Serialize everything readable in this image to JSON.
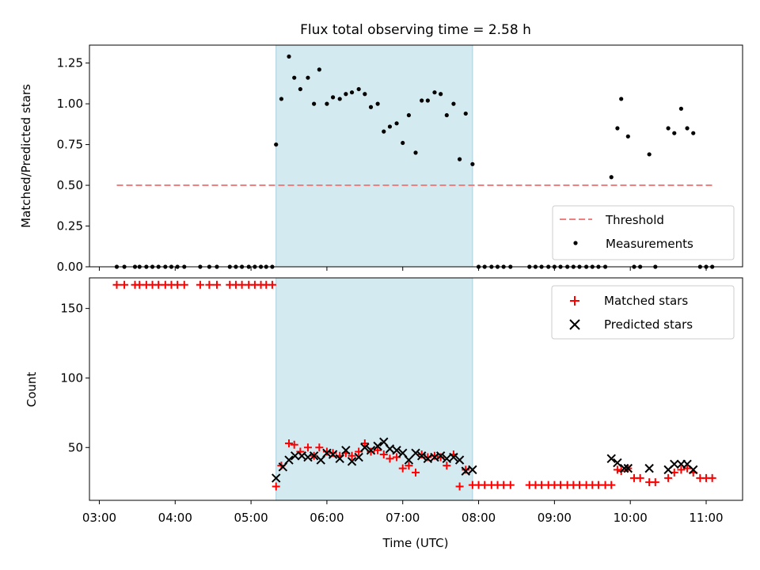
{
  "figure": {
    "title": "Flux total observing time = 2.58 h"
  },
  "chart_data": [
    {
      "type": "scatter",
      "title": "Flux total observing time = 2.58 h",
      "ylabel": "Matched/Predicted stars",
      "xlabel": "",
      "xlim": [
        2.87,
        11.48
      ],
      "ylim": [
        0,
        1.36
      ],
      "yticks": [
        0,
        0.25,
        0.5,
        0.75,
        1.0,
        1.25
      ],
      "ytick_labels": [
        "0.00",
        "0.25",
        "0.50",
        "0.75",
        "1.00",
        "1.25"
      ],
      "shaded_band": {
        "x0": 5.33,
        "x1": 7.92,
        "color": "#d4eaf1"
      },
      "legend_position": "lower-right",
      "legend": [
        {
          "label": "Threshold",
          "style": "dashed-line",
          "color": "#f08080"
        },
        {
          "label": "Measurements",
          "style": "dot",
          "color": "#000000"
        }
      ],
      "series": [
        {
          "name": "Threshold",
          "style": "dashed-line",
          "color": "#f08080",
          "x": [
            3.23,
            11.08
          ],
          "y": [
            0.5,
            0.5
          ]
        },
        {
          "name": "Measurements",
          "style": "dot",
          "color": "#000000",
          "x": [
            3.23,
            3.33,
            3.47,
            3.53,
            3.62,
            3.7,
            3.78,
            3.87,
            3.95,
            4.03,
            4.12,
            4.33,
            4.45,
            4.55,
            4.72,
            4.8,
            4.88,
            4.97,
            5.05,
            5.13,
            5.2,
            5.28,
            5.33,
            5.4,
            5.5,
            5.57,
            5.65,
            5.75,
            5.83,
            5.9,
            6.0,
            6.08,
            6.17,
            6.25,
            6.33,
            6.42,
            6.5,
            6.58,
            6.67,
            6.75,
            6.83,
            6.92,
            7.0,
            7.08,
            7.17,
            7.25,
            7.33,
            7.42,
            7.5,
            7.58,
            7.67,
            7.75,
            7.83,
            7.92,
            8.0,
            8.08,
            8.17,
            8.25,
            8.33,
            8.42,
            8.67,
            8.75,
            8.83,
            8.92,
            9.0,
            9.08,
            9.17,
            9.25,
            9.33,
            9.42,
            9.5,
            9.58,
            9.67,
            9.75,
            9.83,
            9.88,
            9.97,
            10.05,
            10.13,
            10.25,
            10.33,
            10.5,
            10.58,
            10.67,
            10.75,
            10.83,
            10.92,
            11.0,
            11.08
          ],
          "y": [
            0,
            0,
            0,
            0,
            0,
            0,
            0,
            0,
            0,
            0,
            0,
            0,
            0,
            0,
            0,
            0,
            0,
            0,
            0,
            0,
            0,
            0,
            0.75,
            1.03,
            1.29,
            1.16,
            1.09,
            1.16,
            1.0,
            1.21,
            1.0,
            1.04,
            1.03,
            1.06,
            1.07,
            1.09,
            1.06,
            0.98,
            1.0,
            0.83,
            0.86,
            0.88,
            0.76,
            0.93,
            0.7,
            1.02,
            1.02,
            1.07,
            1.06,
            0.93,
            1.0,
            0.66,
            0.94,
            0.63,
            0,
            0,
            0,
            0,
            0,
            0,
            0,
            0,
            0,
            0,
            0,
            0,
            0,
            0,
            0,
            0,
            0,
            0,
            0,
            0.55,
            0.85,
            1.03,
            0.8,
            0,
            0,
            0.69,
            0,
            0.85,
            0.82,
            0.97,
            0.85,
            0.82,
            0,
            0,
            0
          ]
        }
      ]
    },
    {
      "type": "scatter",
      "title": "",
      "xlabel": "Time (UTC)",
      "ylabel": "Count",
      "xlim": [
        2.87,
        11.48
      ],
      "ylim": [
        12,
        172
      ],
      "xticks": [
        3,
        4,
        5,
        6,
        7,
        8,
        9,
        10,
        11
      ],
      "xtick_labels": [
        "03:00",
        "04:00",
        "05:00",
        "06:00",
        "07:00",
        "08:00",
        "09:00",
        "10:00",
        "11:00"
      ],
      "yticks": [
        50,
        100,
        150
      ],
      "ytick_labels": [
        "50",
        "100",
        "150"
      ],
      "shaded_band": {
        "x0": 5.33,
        "x1": 7.92,
        "color": "#d4eaf1"
      },
      "legend_position": "upper-right",
      "legend": [
        {
          "label": "Matched stars",
          "style": "plus",
          "color": "#ff0000"
        },
        {
          "label": "Predicted stars",
          "style": "x",
          "color": "#000000"
        }
      ],
      "series": [
        {
          "name": "Matched stars",
          "style": "plus",
          "color": "#ff0000",
          "x": [
            3.23,
            3.33,
            3.47,
            3.53,
            3.62,
            3.7,
            3.78,
            3.87,
            3.95,
            4.03,
            4.12,
            4.33,
            4.45,
            4.55,
            4.72,
            4.8,
            4.88,
            4.97,
            5.05,
            5.13,
            5.2,
            5.28,
            5.33,
            5.4,
            5.5,
            5.57,
            5.65,
            5.75,
            5.83,
            5.9,
            6.0,
            6.08,
            6.17,
            6.25,
            6.33,
            6.42,
            6.5,
            6.58,
            6.67,
            6.75,
            6.83,
            6.92,
            7.0,
            7.08,
            7.17,
            7.25,
            7.33,
            7.42,
            7.5,
            7.58,
            7.67,
            7.75,
            7.83,
            7.92,
            8.0,
            8.08,
            8.17,
            8.25,
            8.33,
            8.42,
            8.67,
            8.75,
            8.83,
            8.92,
            9.0,
            9.08,
            9.17,
            9.25,
            9.33,
            9.42,
            9.5,
            9.58,
            9.67,
            9.75,
            9.83,
            9.88,
            9.97,
            10.05,
            10.13,
            10.25,
            10.33,
            10.5,
            10.58,
            10.67,
            10.75,
            10.83,
            10.92,
            11.0,
            11.08
          ],
          "y": [
            167,
            167,
            167,
            167,
            167,
            167,
            167,
            167,
            167,
            167,
            167,
            167,
            167,
            167,
            167,
            167,
            167,
            167,
            167,
            167,
            167,
            167,
            22,
            37,
            53,
            52,
            47,
            50,
            44,
            50,
            47,
            46,
            44,
            46,
            44,
            47,
            53,
            47,
            48,
            45,
            42,
            43,
            35,
            37,
            32,
            45,
            43,
            44,
            43,
            37,
            45,
            22,
            34,
            23,
            23,
            23,
            23,
            23,
            23,
            23,
            23,
            23,
            23,
            23,
            23,
            23,
            23,
            23,
            23,
            23,
            23,
            23,
            23,
            23,
            34,
            33,
            35,
            28,
            28,
            25,
            25,
            28,
            32,
            34,
            35,
            32,
            28,
            28,
            28
          ]
        },
        {
          "name": "Predicted stars",
          "style": "x",
          "color": "#000000",
          "x": [
            5.33,
            5.42,
            5.5,
            5.58,
            5.67,
            5.75,
            5.83,
            5.92,
            6.0,
            6.08,
            6.17,
            6.25,
            6.33,
            6.42,
            6.5,
            6.58,
            6.67,
            6.75,
            6.83,
            6.92,
            7.0,
            7.08,
            7.17,
            7.25,
            7.33,
            7.42,
            7.5,
            7.58,
            7.67,
            7.75,
            7.83,
            7.92,
            9.75,
            9.83,
            9.92,
            9.97,
            10.25,
            10.5,
            10.58,
            10.67,
            10.75,
            10.83
          ],
          "y": [
            28,
            36,
            41,
            44,
            44,
            43,
            44,
            41,
            46,
            45,
            42,
            48,
            40,
            43,
            50,
            48,
            51,
            54,
            49,
            48,
            46,
            41,
            46,
            44,
            42,
            43,
            44,
            42,
            43,
            41,
            33,
            34,
            42,
            39,
            35,
            35,
            35,
            34,
            38,
            38,
            38,
            34
          ]
        }
      ]
    }
  ]
}
